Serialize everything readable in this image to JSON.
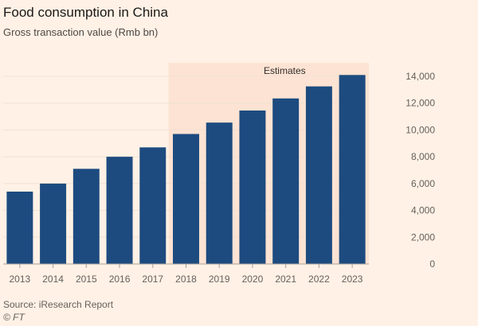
{
  "chart_data": {
    "type": "bar",
    "title": "Food consumption in China",
    "subtitle": "Gross transaction value (Rmb bn)",
    "categories": [
      "2013",
      "2014",
      "2015",
      "2016",
      "2017",
      "2018",
      "2019",
      "2020",
      "2021",
      "2022",
      "2023"
    ],
    "values": [
      5400,
      6000,
      7100,
      8000,
      8700,
      9700,
      10550,
      11450,
      12350,
      13250,
      14100
    ],
    "ylim": [
      0,
      15000
    ],
    "yticks": [
      0,
      2000,
      4000,
      6000,
      8000,
      10000,
      12000,
      14000
    ],
    "ytick_labels": [
      "0",
      "2,000",
      "4,000",
      "6,000",
      "8,000",
      "10,000",
      "12,000",
      "14,000"
    ],
    "y_axis_side": "right",
    "grid": true,
    "annotation": {
      "label": "Estimates",
      "from": "2018",
      "to": "2023"
    },
    "colors": {
      "bar": "#1d4b7f",
      "background": "#fff1e5",
      "shade": "#fde3d3",
      "grid": "#f0e1d5"
    }
  },
  "source": "Source: iResearch Report",
  "credit": "© FT"
}
